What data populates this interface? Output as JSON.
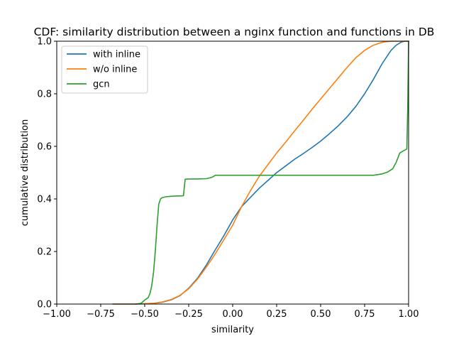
{
  "chart_data": {
    "type": "line",
    "title": "CDF: similarity distribution between a nginx function and functions in DB",
    "xlabel": "similarity",
    "ylabel": "cumulative distribution",
    "xlim": [
      -1.0,
      1.0
    ],
    "ylim": [
      0.0,
      1.0
    ],
    "xticks": [
      "−1.00",
      "−0.75",
      "−0.50",
      "−0.25",
      "0.00",
      "0.25",
      "0.50",
      "0.75",
      "1.00"
    ],
    "yticks": [
      "0.0",
      "0.2",
      "0.4",
      "0.6",
      "0.8",
      "1.0"
    ],
    "grid": false,
    "legend_position": "upper-left",
    "series": [
      {
        "name": "with inline",
        "color": "#1f77b4",
        "x": [
          -0.68,
          -0.55,
          -0.5,
          -0.45,
          -0.4,
          -0.35,
          -0.3,
          -0.25,
          -0.2,
          -0.15,
          -0.1,
          -0.05,
          0.0,
          0.05,
          0.1,
          0.15,
          0.2,
          0.25,
          0.3,
          0.35,
          0.4,
          0.45,
          0.5,
          0.55,
          0.6,
          0.65,
          0.7,
          0.75,
          0.8,
          0.85,
          0.9,
          0.93,
          0.96,
          0.98,
          1.0
        ],
        "y": [
          0.0,
          0.0,
          0.001,
          0.003,
          0.007,
          0.016,
          0.032,
          0.06,
          0.098,
          0.148,
          0.205,
          0.26,
          0.32,
          0.37,
          0.405,
          0.44,
          0.47,
          0.5,
          0.525,
          0.55,
          0.572,
          0.595,
          0.62,
          0.648,
          0.678,
          0.712,
          0.752,
          0.8,
          0.855,
          0.915,
          0.965,
          0.985,
          0.997,
          1.0,
          1.0
        ]
      },
      {
        "name": "w/o inline",
        "color": "#ff7f0e",
        "x": [
          -0.68,
          -0.55,
          -0.5,
          -0.45,
          -0.4,
          -0.35,
          -0.3,
          -0.25,
          -0.2,
          -0.15,
          -0.1,
          -0.05,
          0.0,
          0.05,
          0.1,
          0.15,
          0.2,
          0.25,
          0.3,
          0.35,
          0.4,
          0.45,
          0.5,
          0.55,
          0.6,
          0.65,
          0.7,
          0.75,
          0.8,
          0.85,
          0.9,
          0.95,
          1.0
        ],
        "y": [
          0.0,
          0.0,
          0.001,
          0.003,
          0.008,
          0.017,
          0.033,
          0.058,
          0.095,
          0.14,
          0.19,
          0.245,
          0.3,
          0.37,
          0.43,
          0.485,
          0.53,
          0.575,
          0.615,
          0.657,
          0.698,
          0.74,
          0.78,
          0.82,
          0.86,
          0.9,
          0.937,
          0.965,
          0.985,
          0.996,
          1.0,
          1.0,
          1.0
        ]
      },
      {
        "name": "gcn",
        "color": "#2ca02c",
        "x": [
          -0.55,
          -0.52,
          -0.5,
          -0.48,
          -0.47,
          -0.46,
          -0.45,
          -0.44,
          -0.43,
          -0.42,
          -0.41,
          -0.4,
          -0.38,
          -0.35,
          -0.32,
          -0.28,
          -0.27,
          -0.25,
          -0.2,
          -0.15,
          -0.13,
          -0.12,
          -0.11,
          -0.1,
          0.0,
          0.2,
          0.4,
          0.6,
          0.8,
          0.85,
          0.88,
          0.91,
          0.93,
          0.95,
          0.97,
          0.99,
          0.995,
          1.0
        ],
        "y": [
          0.0,
          0.003,
          0.015,
          0.025,
          0.04,
          0.07,
          0.12,
          0.2,
          0.3,
          0.38,
          0.4,
          0.405,
          0.408,
          0.41,
          0.411,
          0.412,
          0.475,
          0.476,
          0.476,
          0.477,
          0.48,
          0.482,
          0.485,
          0.49,
          0.49,
          0.49,
          0.49,
          0.49,
          0.49,
          0.495,
          0.502,
          0.515,
          0.54,
          0.575,
          0.583,
          0.59,
          0.75,
          1.0
        ]
      }
    ]
  }
}
